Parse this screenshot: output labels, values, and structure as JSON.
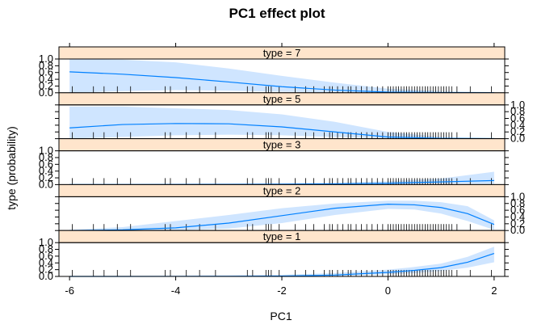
{
  "chart_data": {
    "type": "line",
    "title": "PC1 effect plot",
    "xlabel": "PC1",
    "ylabel": "type (probability)",
    "xlim": [
      -6.2,
      2.2
    ],
    "ylim": [
      0,
      1
    ],
    "x_ticks": [
      -6,
      -4,
      -2,
      0,
      2
    ],
    "y_ticks": [
      0.0,
      0.2,
      0.4,
      0.6,
      0.8,
      1.0
    ],
    "colors": {
      "line": "#0080ff",
      "band": "#cfe5ff",
      "strip": "#ffe5cc",
      "rug": "#000000"
    },
    "rug": [
      -5.95,
      -5.55,
      -5.35,
      -5.1,
      -4.85,
      -4.2,
      -4.1,
      -3.8,
      -3.55,
      -3.25,
      -2.65,
      -2.55,
      -2.3,
      -2.25,
      -2.2,
      -2.05,
      -1.75,
      -1.55,
      -1.4,
      -1.2,
      -1.1,
      -1.05,
      -0.95,
      -0.85,
      -0.75,
      -0.7,
      -0.6,
      -0.5,
      -0.4,
      -0.3,
      -0.2,
      -0.1,
      0.0,
      0.05,
      0.1,
      0.15,
      0.2,
      0.25,
      0.3,
      0.35,
      0.4,
      0.45,
      0.5,
      0.55,
      0.6,
      0.65,
      0.7,
      0.75,
      0.8,
      0.85,
      0.9,
      0.95,
      1.0,
      1.05,
      1.1,
      1.15,
      1.2,
      1.3,
      1.55,
      1.95
    ],
    "panels": [
      {
        "label": "type = 7",
        "x": [
          -6,
          -5,
          -4,
          -3,
          -2,
          -1,
          0,
          1,
          2
        ],
        "fit": [
          0.62,
          0.55,
          0.45,
          0.32,
          0.18,
          0.08,
          0.02,
          0.005,
          0.001
        ],
        "lower": [
          0.0,
          0.05,
          0.08,
          0.06,
          0.03,
          0.01,
          0.0,
          0.0,
          0.0
        ],
        "upper": [
          1.0,
          0.98,
          0.9,
          0.72,
          0.5,
          0.3,
          0.12,
          0.05,
          0.02
        ]
      },
      {
        "label": "type = 5",
        "x": [
          -6,
          -5,
          -4,
          -3,
          -2,
          -1,
          0,
          1,
          2
        ],
        "fit": [
          0.32,
          0.42,
          0.45,
          0.44,
          0.35,
          0.2,
          0.05,
          0.01,
          0.002
        ],
        "lower": [
          0.0,
          0.05,
          0.1,
          0.12,
          0.1,
          0.05,
          0.01,
          0.0,
          0.0
        ],
        "upper": [
          0.95,
          0.95,
          0.9,
          0.85,
          0.72,
          0.5,
          0.2,
          0.05,
          0.02
        ]
      },
      {
        "label": "type = 3",
        "x": [
          -6,
          -5,
          -4,
          -3,
          -2,
          -1,
          0,
          1,
          2
        ],
        "fit": [
          0.0,
          0.001,
          0.002,
          0.005,
          0.01,
          0.02,
          0.04,
          0.08,
          0.12
        ],
        "lower": [
          0.0,
          0.0,
          0.0,
          0.0,
          0.0,
          0.005,
          0.01,
          0.03,
          0.02
        ],
        "upper": [
          0.01,
          0.02,
          0.03,
          0.04,
          0.05,
          0.06,
          0.1,
          0.18,
          0.38
        ]
      },
      {
        "label": "type = 2",
        "x": [
          -6,
          -5,
          -4,
          -3,
          -2,
          -1,
          0,
          0.5,
          1,
          1.5,
          2
        ],
        "fit": [
          0.0,
          0.02,
          0.08,
          0.22,
          0.44,
          0.66,
          0.78,
          0.76,
          0.68,
          0.5,
          0.18
        ],
        "lower": [
          0.0,
          0.0,
          0.01,
          0.06,
          0.22,
          0.46,
          0.64,
          0.62,
          0.5,
          0.28,
          0.02
        ],
        "upper": [
          0.02,
          0.1,
          0.28,
          0.46,
          0.66,
          0.8,
          0.88,
          0.88,
          0.84,
          0.72,
          0.3
        ]
      },
      {
        "label": "type = 1",
        "x": [
          -6,
          -5,
          -4,
          -3,
          -2,
          -1,
          0,
          0.5,
          1,
          1.5,
          2
        ],
        "fit": [
          0.0,
          0.0,
          0.001,
          0.005,
          0.01,
          0.04,
          0.12,
          0.18,
          0.26,
          0.42,
          0.68
        ],
        "lower": [
          0.0,
          0.0,
          0.0,
          0.0,
          0.0,
          0.01,
          0.06,
          0.1,
          0.16,
          0.26,
          0.42
        ],
        "upper": [
          0.0,
          0.01,
          0.02,
          0.03,
          0.05,
          0.1,
          0.2,
          0.28,
          0.38,
          0.58,
          0.88
        ]
      }
    ]
  }
}
